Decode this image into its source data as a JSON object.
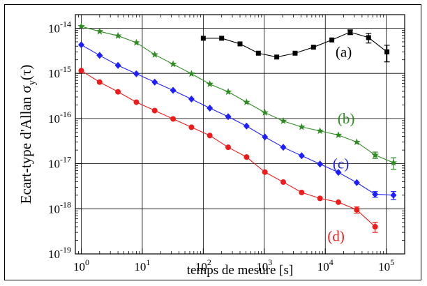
{
  "chart_data": {
    "type": "line",
    "xlabel": "temps de mesure [s]",
    "ylabel": "Ecart-type d'Allan σ_y(τ)",
    "ylabel_parts": {
      "main": "Ecart-type d'Allan σ",
      "sub": "y",
      "tail": "(τ)"
    },
    "xscale": "log",
    "yscale": "log",
    "xlim": [
      0.8,
      200000
    ],
    "ylim": [
      1e-19,
      2e-14
    ],
    "grid": true,
    "x_ticks": [
      {
        "value": 1,
        "base": "10",
        "exp": "0"
      },
      {
        "value": 10,
        "base": "10",
        "exp": "1"
      },
      {
        "value": 100,
        "base": "10",
        "exp": "2"
      },
      {
        "value": 1000,
        "base": "10",
        "exp": "3"
      },
      {
        "value": 10000,
        "base": "10",
        "exp": "4"
      },
      {
        "value": 100000,
        "base": "10",
        "exp": "5"
      }
    ],
    "y_ticks": [
      {
        "value": 1e-19,
        "base": "10",
        "exp": "-19"
      },
      {
        "value": 1e-18,
        "base": "10",
        "exp": "-18"
      },
      {
        "value": 1e-17,
        "base": "10",
        "exp": "-17"
      },
      {
        "value": 1e-16,
        "base": "10",
        "exp": "-16"
      },
      {
        "value": 1e-15,
        "base": "10",
        "exp": "-15"
      },
      {
        "value": 1e-14,
        "base": "10",
        "exp": "-14"
      }
    ],
    "series": [
      {
        "name": "(a)",
        "color": "#000000",
        "marker": "square",
        "label_pos": {
          "x": 20000,
          "y": 3e-15
        },
        "x": [
          100,
          200,
          400,
          800,
          1600,
          3200,
          6400,
          12800,
          25600,
          51200,
          102400
        ],
        "y": [
          6e-15,
          6e-15,
          4.5e-15,
          2.8e-15,
          2.3e-15,
          2.8e-15,
          3.8e-15,
          5.5e-15,
          8.2e-15,
          6.2e-15,
          3e-15
        ],
        "err": [
          0,
          0,
          0,
          0,
          0,
          0,
          0,
          0,
          1e-15,
          1.5e-15,
          1.2e-15
        ]
      },
      {
        "name": "(b)",
        "color": "#2e8b22",
        "marker": "star",
        "label_pos": {
          "x": 22000,
          "y": 1e-16
        },
        "x": [
          1,
          2,
          4,
          8,
          16,
          32,
          64,
          128,
          256,
          512,
          1024,
          2048,
          4096,
          8192,
          16384,
          32768,
          65536,
          131072
        ],
        "y": [
          1.1e-14,
          8.5e-15,
          6.8e-15,
          4.8e-15,
          2.6e-15,
          1.6e-15,
          9.8e-16,
          5.8e-16,
          3.9e-16,
          2.3e-16,
          1.35e-16,
          8.8e-17,
          6.5e-17,
          5.3e-17,
          4.3e-17,
          3e-17,
          1.55e-17,
          1.05e-17
        ],
        "err": [
          0,
          0,
          0,
          0,
          0,
          0,
          0,
          0,
          0,
          0,
          0,
          0,
          0,
          0,
          0,
          0,
          2.5e-18,
          3e-18
        ]
      },
      {
        "name": "(c)",
        "color": "#1e1eff",
        "marker": "diamond",
        "label_pos": {
          "x": 18000,
          "y": 1e-17
        },
        "x": [
          1,
          2,
          4,
          8,
          16,
          32,
          64,
          128,
          256,
          512,
          1024,
          2048,
          4096,
          8192,
          16384,
          32768,
          65536,
          131072
        ],
        "y": [
          4.3e-15,
          2.5e-15,
          1.5e-15,
          9.8e-16,
          6.4e-16,
          4.2e-16,
          2.7e-16,
          1.7e-16,
          1.1e-16,
          6.8e-17,
          3.9e-17,
          2.3e-17,
          1.5e-17,
          9.8e-18,
          6.4e-18,
          3.8e-18,
          2.1e-18,
          2e-18
        ],
        "err": [
          0,
          0,
          0,
          0,
          0,
          0,
          0,
          0,
          0,
          0,
          0,
          0,
          0,
          0,
          0,
          0,
          3e-19,
          4e-19
        ]
      },
      {
        "name": "(d)",
        "color": "#ee1b1b",
        "marker": "circle",
        "label_pos": {
          "x": 15000,
          "y": 2.5e-19
        },
        "x": [
          1,
          2,
          4,
          8,
          16,
          32,
          64,
          128,
          256,
          512,
          1024,
          2048,
          4096,
          8192,
          16384,
          32768,
          65536
        ],
        "y": [
          1.15e-15,
          6.4e-16,
          3.9e-16,
          2.3e-16,
          1.5e-16,
          9.8e-17,
          6.4e-17,
          4.2e-17,
          2.3e-17,
          1.4e-17,
          6.5e-18,
          3.9e-18,
          2.3e-18,
          1.7e-18,
          1.4e-18,
          9.5e-19,
          4e-19
        ],
        "err": [
          0,
          0,
          0,
          0,
          0,
          0,
          0,
          0,
          0,
          0,
          0,
          0,
          0,
          0,
          0,
          1.5e-19,
          1e-19
        ]
      }
    ]
  }
}
